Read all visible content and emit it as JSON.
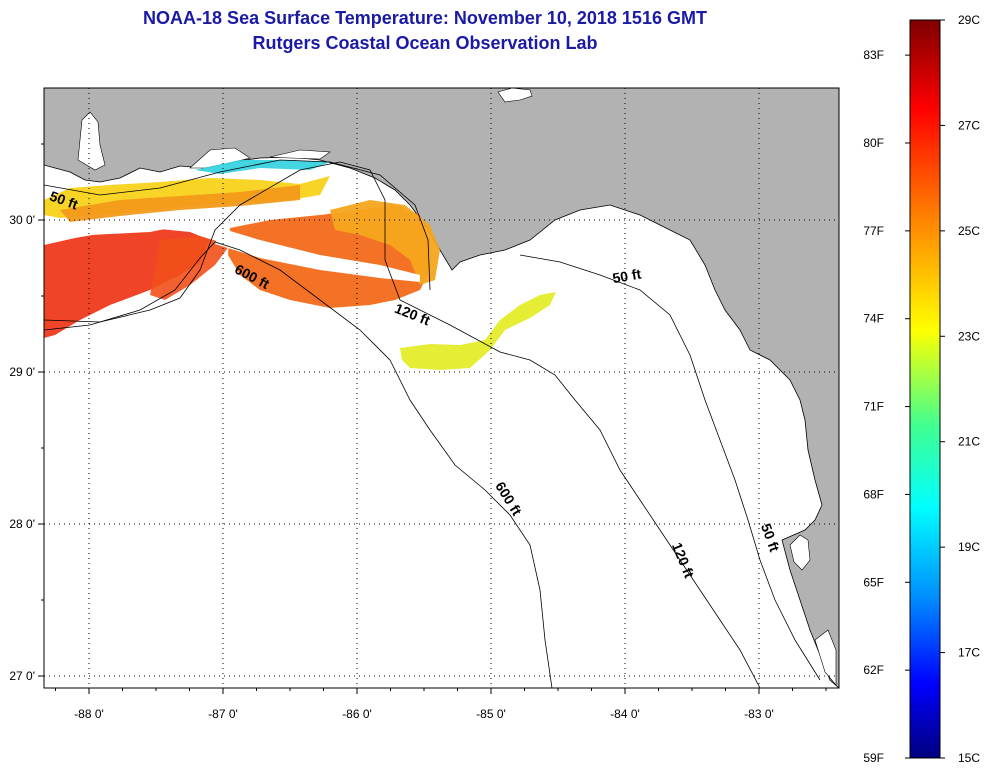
{
  "header": {
    "title": "NOAA-18 Sea Surface Temperature:  November 10, 2018 1516 GMT",
    "subtitle": "Rutgers Coastal Ocean Observation Lab"
  },
  "map": {
    "lon_ticks": [
      {
        "value": -88,
        "label": "-88 0'"
      },
      {
        "value": -87,
        "label": "-87 0'"
      },
      {
        "value": -86,
        "label": "-86 0'"
      },
      {
        "value": -85,
        "label": "-85 0'"
      },
      {
        "value": -84,
        "label": "-84 0'"
      },
      {
        "value": -83,
        "label": "-83 0'"
      }
    ],
    "lat_ticks": [
      {
        "value": 30,
        "label": "30 0'"
      },
      {
        "value": 29,
        "label": "29 0'"
      },
      {
        "value": 28,
        "label": "28 0'"
      },
      {
        "value": 27,
        "label": "27 0'"
      }
    ],
    "contour_labels": [
      {
        "text": "50 ft",
        "lon": -88.2,
        "lat": 30.1,
        "angle": 20
      },
      {
        "text": "600 ft",
        "lon": -86.8,
        "lat": 29.6,
        "angle": 28
      },
      {
        "text": "120 ft",
        "lon": -85.6,
        "lat": 29.35,
        "angle": 22
      },
      {
        "text": "50 ft",
        "lon": -83.98,
        "lat": 29.6,
        "angle": -10
      },
      {
        "text": "600 ft",
        "lon": -84.9,
        "lat": 28.15,
        "angle": 58
      },
      {
        "text": "120 ft",
        "lon": -83.6,
        "lat": 27.75,
        "angle": 68
      },
      {
        "text": "50 ft",
        "lon": -82.95,
        "lat": 27.9,
        "angle": 70
      }
    ],
    "colors": {
      "land": "#b2b2b2",
      "ocean": "#ffffff",
      "coastline": "#000000",
      "grid": "#000000"
    }
  },
  "colorbar": {
    "celsius_labels": [
      {
        "value": 29,
        "label": "29C"
      },
      {
        "value": 27,
        "label": "27C"
      },
      {
        "value": 25,
        "label": "25C"
      },
      {
        "value": 23,
        "label": "23C"
      },
      {
        "value": 21,
        "label": "21C"
      },
      {
        "value": 19,
        "label": "19C"
      },
      {
        "value": 17,
        "label": "17C"
      },
      {
        "value": 15,
        "label": "15C"
      }
    ],
    "fahrenheit_labels": [
      {
        "value": 83,
        "label": "83F"
      },
      {
        "value": 80,
        "label": "80F"
      },
      {
        "value": 77,
        "label": "77F"
      },
      {
        "value": 74,
        "label": "74F"
      },
      {
        "value": 71,
        "label": "71F"
      },
      {
        "value": 68,
        "label": "68F"
      },
      {
        "value": 65,
        "label": "65F"
      },
      {
        "value": 62,
        "label": "62F"
      },
      {
        "value": 59,
        "label": "59F"
      }
    ],
    "range_c": [
      15,
      29
    ],
    "gradient_stops": [
      "#7f0000",
      "#ff0000",
      "#ff8c00",
      "#ffff00",
      "#00ff80",
      "#00ffff",
      "#0080ff",
      "#0000ff",
      "#00008f"
    ]
  }
}
